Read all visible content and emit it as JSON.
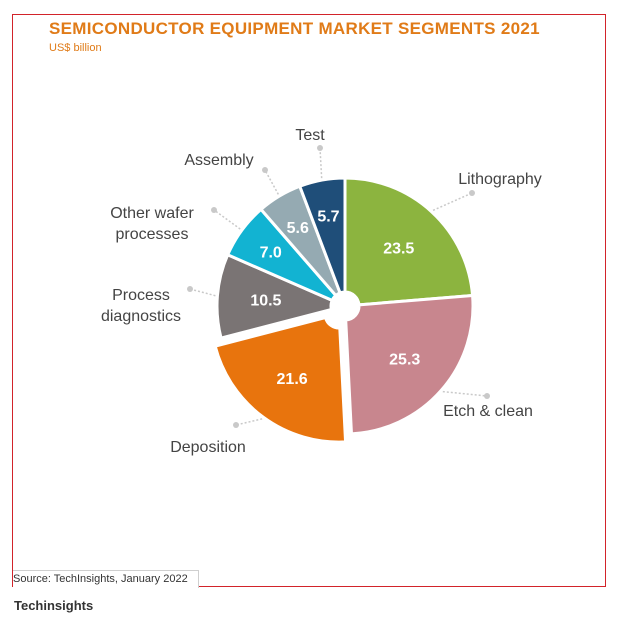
{
  "chart_data": {
    "type": "pie",
    "title": "SEMICONDUCTOR EQUIPMENT MARKET SEGMENTS 2021",
    "subtitle": "US$ billion",
    "slices": [
      {
        "label": "Lithography",
        "value": 23.5,
        "value_label": "23.5",
        "color": "#8cb43f"
      },
      {
        "label": "Etch & clean",
        "value": 25.3,
        "value_label": "25.3",
        "color": "#c8868e"
      },
      {
        "label": "Deposition",
        "value": 21.6,
        "value_label": "21.6",
        "color": "#e8740d",
        "exploded": true
      },
      {
        "label": "Process diagnostics",
        "value": 10.5,
        "value_label": "10.5",
        "color": "#7a7474"
      },
      {
        "label": "Other wafer processes",
        "value": 7.0,
        "value_label": "7.0",
        "color": "#12b3d2"
      },
      {
        "label": "Assembly",
        "value": 5.6,
        "value_label": "5.6",
        "color": "#95aab2"
      },
      {
        "label": "Test",
        "value": 5.7,
        "value_label": "5.7",
        "color": "#1f4e79"
      }
    ],
    "legend": "none"
  },
  "source": "Source: TechInsights, January 2022",
  "credit": "Techinsights"
}
